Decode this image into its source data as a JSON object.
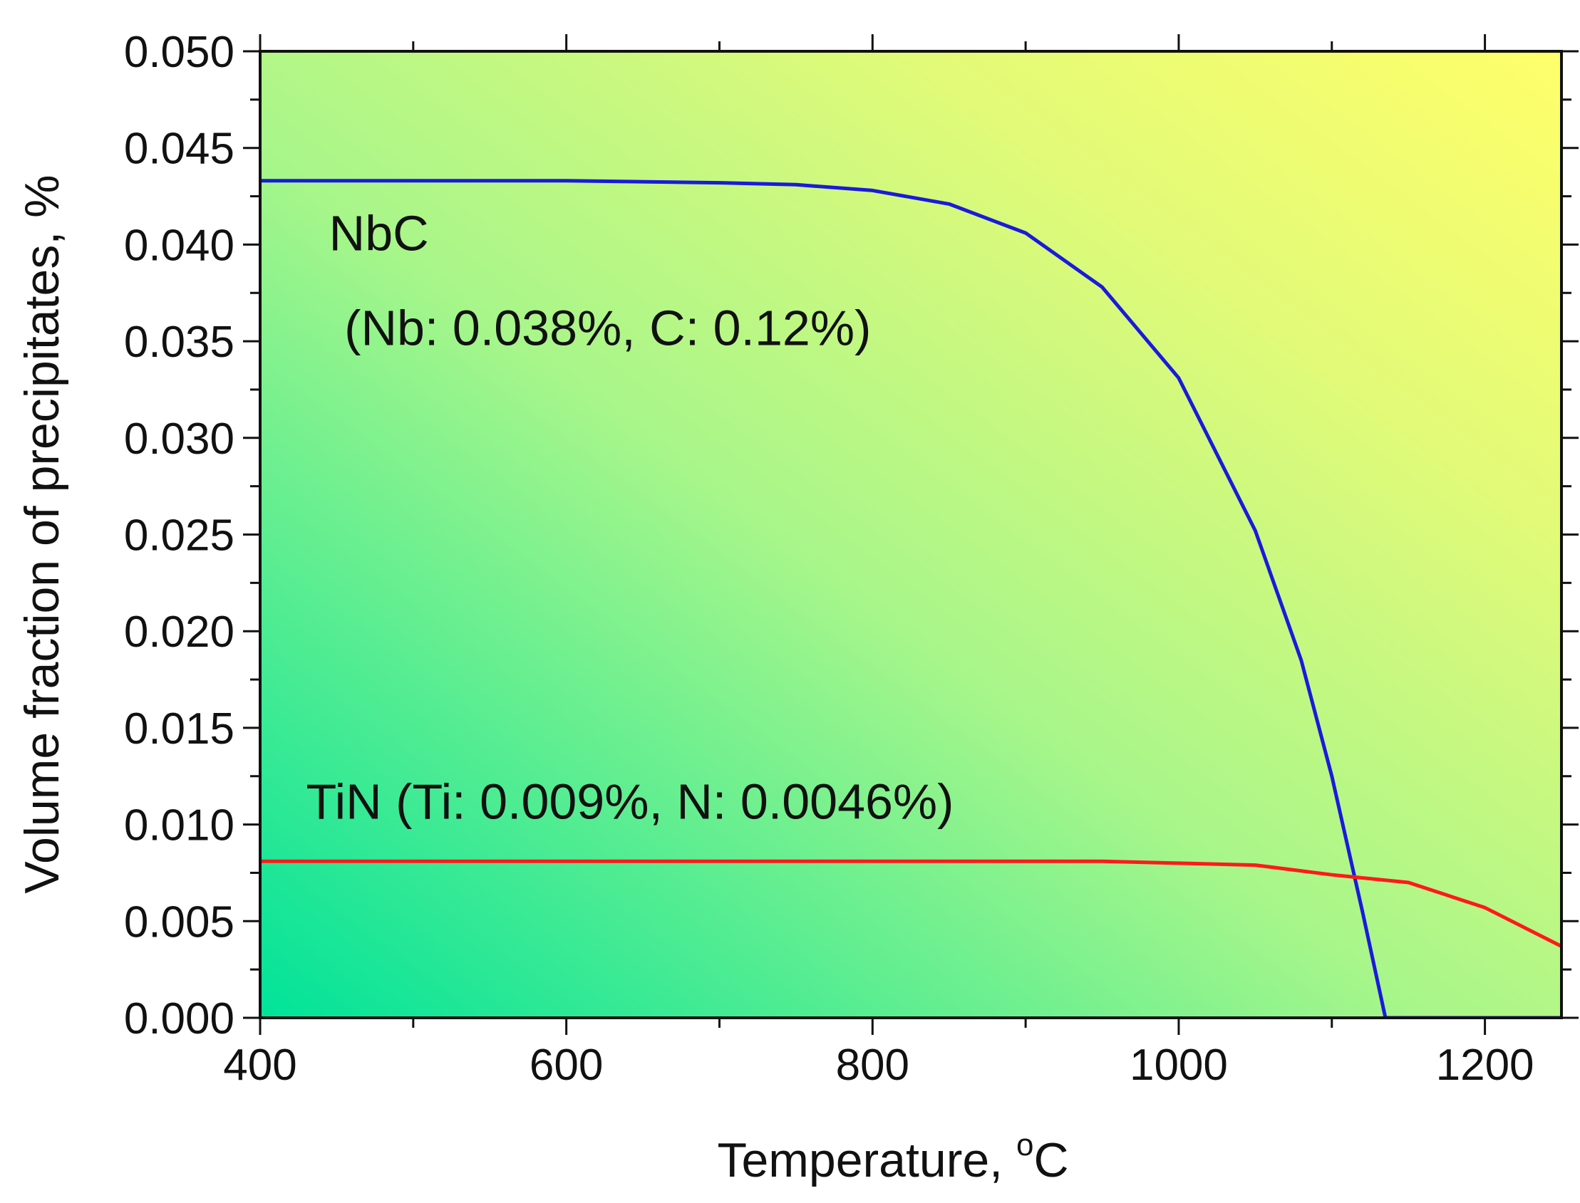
{
  "chart_data": {
    "type": "line",
    "title": "",
    "xlabel": "Temperature, ",
    "xlabel_unit_sup": "o",
    "xlabel_unit": "C",
    "ylabel": "Volume fraction of precipitates, %",
    "xlim": [
      400,
      1250
    ],
    "ylim": [
      0,
      0.05
    ],
    "grid": false,
    "background": "gradient (green bottom-left to yellow top-right)",
    "x_ticks": [
      400,
      600,
      800,
      1000,
      1200
    ],
    "x_tick_labels": [
      "400",
      "600",
      "800",
      "1000",
      "1200"
    ],
    "y_ticks": [
      0,
      0.005,
      0.01,
      0.015,
      0.02,
      0.025,
      0.03,
      0.035,
      0.04,
      0.045,
      0.05
    ],
    "y_tick_labels": [
      "0.000",
      "0.005",
      "0.010",
      "0.015",
      "0.020",
      "0.025",
      "0.030",
      "0.035",
      "0.040",
      "0.045",
      "0.050"
    ],
    "series": [
      {
        "name": "NbC",
        "color": "#1a1adc",
        "x": [
          400,
          500,
          600,
          700,
          750,
          800,
          850,
          900,
          950,
          1000,
          1050,
          1080,
          1100,
          1120,
          1135,
          1150,
          1200,
          1250
        ],
        "y": [
          0.0433,
          0.0433,
          0.0433,
          0.0432,
          0.0431,
          0.0428,
          0.0421,
          0.0406,
          0.0378,
          0.0331,
          0.0252,
          0.0185,
          0.0125,
          0.0055,
          0.0,
          0.0,
          0.0,
          0.0
        ]
      },
      {
        "name": "TiN",
        "color": "#ff1a1a",
        "x": [
          400,
          600,
          800,
          950,
          1000,
          1050,
          1100,
          1150,
          1200,
          1250
        ],
        "y": [
          0.0081,
          0.0081,
          0.0081,
          0.0081,
          0.008,
          0.0079,
          0.0074,
          0.007,
          0.0057,
          0.0037
        ]
      }
    ],
    "annotations": [
      {
        "text": "NbC",
        "x": 445,
        "y": 0.0397
      },
      {
        "text": "(Nb: 0.038%, C: 0.12%)",
        "x": 455,
        "y": 0.0348
      },
      {
        "text": "TiN (Ti: 0.009%, N: 0.0046%)",
        "x": 430,
        "y": 0.0103
      }
    ]
  }
}
